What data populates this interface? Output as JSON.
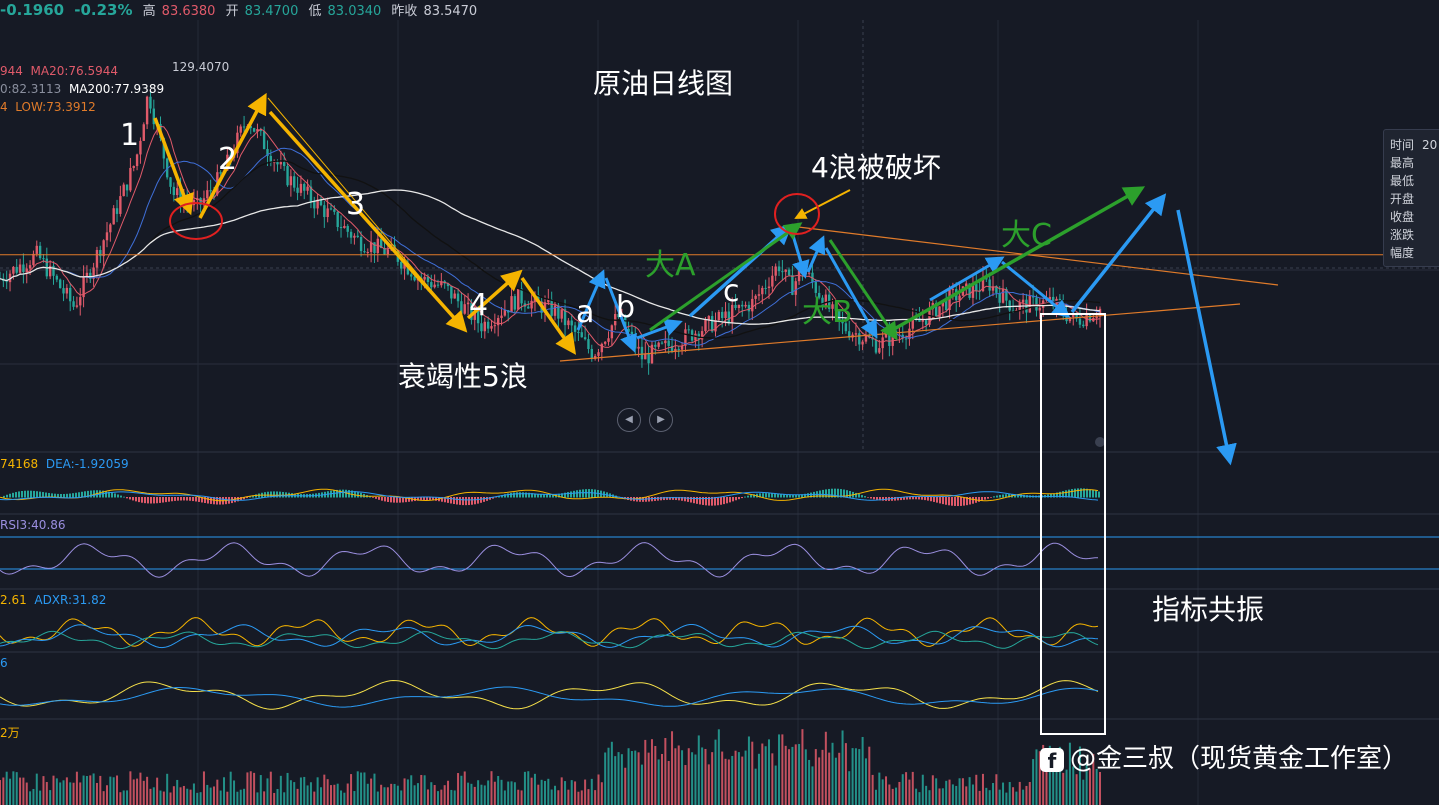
{
  "header": {
    "change": "-0.1960",
    "change_pct": "-0.23%",
    "high_label": "高",
    "high": "83.6380",
    "open_label": "开",
    "open": "83.4700",
    "low_label": "低",
    "low": "83.0340",
    "prev_label": "昨收",
    "prev": "83.5470"
  },
  "ma": {
    "ma_part": "944",
    "ma20": "MA20:76.5944",
    "ma_part2": "0:82.3113",
    "ma200": "MA200:77.9389",
    "low_part": "4",
    "low": "LOW:73.3912"
  },
  "chart_title": "原油日线图",
  "peak_label": "129.4070",
  "wave_labels": {
    "w1": "1",
    "w2": "2",
    "w3": "3",
    "w4": "4",
    "wa": "a",
    "wb": "b",
    "wc": "c",
    "bigA": "大A",
    "bigB": "大B",
    "bigC": "大C"
  },
  "annotations": {
    "broken": "4浪被破坏",
    "exhaust": "衰竭性5浪",
    "resonance": "指标共振"
  },
  "indicators": {
    "macd": "74168",
    "dea": "DEA:-1.92059",
    "rsi": "RSI3:40.86",
    "dmi": "2.61",
    "adxr": "ADXR:31.82",
    "p4": "6",
    "vol": "2万"
  },
  "tooltip": {
    "rows": [
      {
        "k": "时间",
        "v": "20"
      },
      {
        "k": "最高",
        "v": ""
      },
      {
        "k": "最低",
        "v": ""
      },
      {
        "k": "开盘",
        "v": ""
      },
      {
        "k": "收盘",
        "v": ""
      },
      {
        "k": "涨跌",
        "v": ""
      },
      {
        "k": "幅度",
        "v": ""
      }
    ]
  },
  "watermark": "@金三叔（现货黄金工作室）",
  "colors": {
    "background": "#161a25",
    "up": "#e05a6a",
    "down": "#26a69a",
    "yellow_arrow": "#f5b400",
    "blue_arrow": "#2b9af3",
    "green_arrow": "#2ca02c",
    "circle": "#e02020",
    "orange_line": "#e07b2a"
  },
  "chart_data": {
    "type": "candlestick",
    "title": "原油日线图",
    "notes": "Crude oil daily candlestick with Elliott wave annotations and indicator panels (MACD, RSI, DMI, KDJ-like, Volume).",
    "price_path": [
      {
        "t": 0,
        "p": 90
      },
      {
        "t": 3,
        "p": 95
      },
      {
        "t": 6,
        "p": 84
      },
      {
        "t": 9,
        "p": 102
      },
      {
        "t": 11,
        "p": 115
      },
      {
        "t": 12,
        "p": 129.4
      },
      {
        "t": 14,
        "p": 108
      },
      {
        "t": 16,
        "p": 105
      },
      {
        "t": 18,
        "p": 112
      },
      {
        "t": 20,
        "p": 124
      },
      {
        "t": 23,
        "p": 112
      },
      {
        "t": 26,
        "p": 105
      },
      {
        "t": 29,
        "p": 98
      },
      {
        "t": 32,
        "p": 95
      },
      {
        "t": 34,
        "p": 90
      },
      {
        "t": 36,
        "p": 88
      },
      {
        "t": 39,
        "p": 80
      },
      {
        "t": 42,
        "p": 86
      },
      {
        "t": 45,
        "p": 83
      },
      {
        "t": 48,
        "p": 74
      },
      {
        "t": 50,
        "p": 82
      },
      {
        "t": 52,
        "p": 73
      },
      {
        "t": 55,
        "p": 77
      },
      {
        "t": 58,
        "p": 81
      },
      {
        "t": 61,
        "p": 85
      },
      {
        "t": 63,
        "p": 93
      },
      {
        "t": 64,
        "p": 88
      },
      {
        "t": 65,
        "p": 92
      },
      {
        "t": 68,
        "p": 80
      },
      {
        "t": 71,
        "p": 76
      },
      {
        "t": 74,
        "p": 80
      },
      {
        "t": 77,
        "p": 86
      },
      {
        "t": 80,
        "p": 89
      },
      {
        "t": 82,
        "p": 84
      },
      {
        "t": 85,
        "p": 85
      },
      {
        "t": 87,
        "p": 81
      },
      {
        "t": 89,
        "p": 83.5
      }
    ],
    "ylim": [
      60,
      135
    ],
    "levels": {
      "resistance_horizontal": 95,
      "peak": 129.407
    }
  }
}
